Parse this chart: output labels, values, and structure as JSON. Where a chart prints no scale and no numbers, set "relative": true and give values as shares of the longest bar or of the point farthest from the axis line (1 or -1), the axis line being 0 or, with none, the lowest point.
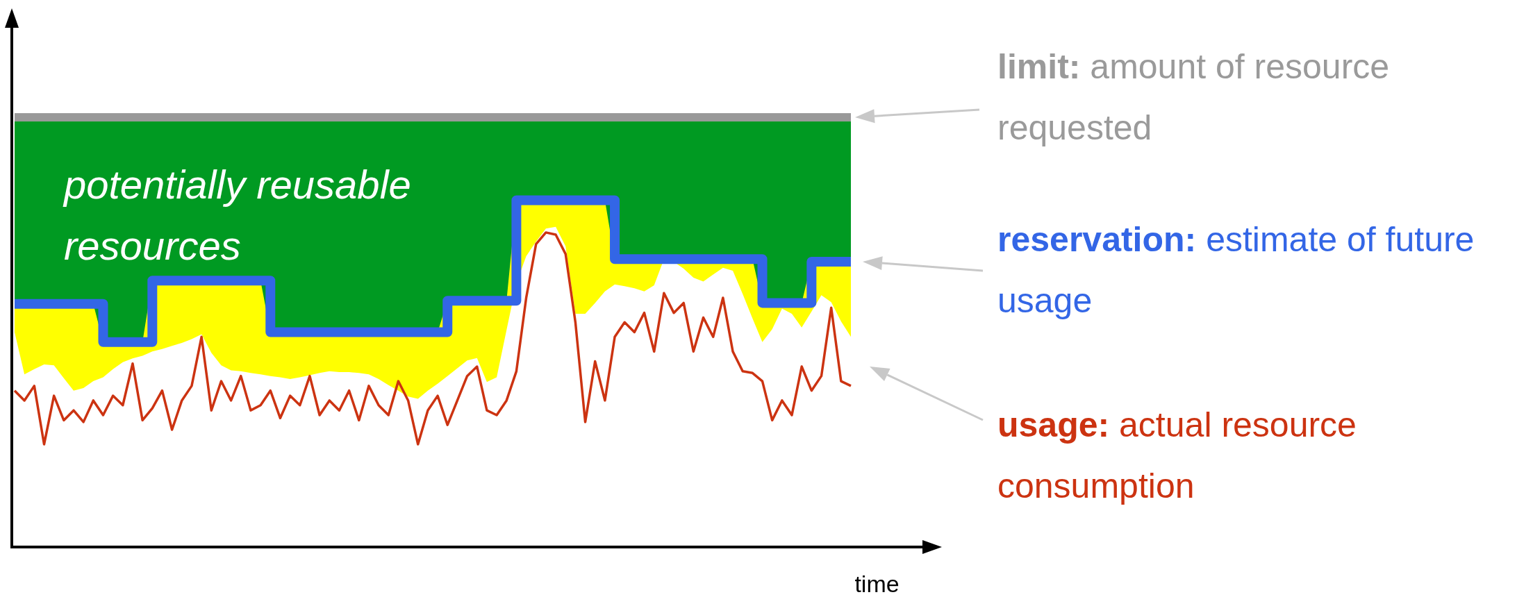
{
  "chart_data": {
    "type": "line",
    "relative": true,
    "xlabel": "time",
    "annotations": [
      "potentially reusable resources",
      "amount of resource requested",
      "estimate of future usage",
      "actual resource consumption"
    ],
    "categories": [
      null,
      null,
      null,
      null,
      null,
      null,
      null,
      null,
      null,
      null,
      null,
      null,
      null,
      null,
      null,
      null,
      null,
      null,
      null,
      null,
      null,
      null,
      null,
      null,
      null,
      null,
      null,
      null,
      null,
      null,
      null,
      null,
      null,
      null,
      null,
      null,
      null,
      null,
      null,
      null,
      null,
      null,
      null,
      null,
      null,
      null,
      null,
      null,
      null,
      null,
      null,
      null,
      null,
      null,
      null,
      null,
      null,
      null,
      null,
      null,
      null,
      null,
      null,
      null,
      null,
      null,
      null,
      null,
      null,
      null,
      null,
      null,
      null,
      null,
      null,
      null,
      null,
      null,
      null,
      null,
      null,
      null,
      null,
      null,
      null,
      null
    ],
    "series": [
      {
        "type": "area",
        "color": "#009a22",
        "values": [
          1,
          1,
          1,
          1,
          1,
          1,
          1,
          1,
          1,
          1,
          1,
          1,
          1,
          1,
          1,
          1,
          1,
          1,
          1,
          1,
          1,
          1,
          1,
          1,
          1,
          1,
          1,
          1,
          1,
          1,
          1,
          1,
          1,
          1,
          1,
          1,
          1,
          1,
          1,
          1,
          1,
          1,
          1,
          1,
          1,
          1,
          1,
          1,
          1,
          1,
          1,
          1,
          1,
          1,
          1,
          1,
          1,
          1,
          1,
          1,
          1,
          1,
          1,
          1,
          1,
          1,
          1,
          1,
          1,
          1,
          1,
          1,
          1,
          1,
          1,
          1,
          1,
          1,
          1,
          1,
          1,
          1,
          1,
          1,
          1,
          1
        ]
      },
      {
        "type": "area",
        "color": "#ffff00",
        "values": [
          0.566,
          0.566,
          0.566,
          0.566,
          0.566,
          0.566,
          0.566,
          0.566,
          0.566,
          0.477,
          0.477,
          0.477,
          0.477,
          0.477,
          0.62,
          0.62,
          0.62,
          0.62,
          0.62,
          0.62,
          0.62,
          0.62,
          0.62,
          0.62,
          0.62,
          0.62,
          0.5,
          0.5,
          0.5,
          0.5,
          0.5,
          0.5,
          0.5,
          0.5,
          0.5,
          0.5,
          0.5,
          0.5,
          0.5,
          0.5,
          0.5,
          0.5,
          0.5,
          0.5,
          0.573,
          0.573,
          0.573,
          0.573,
          0.573,
          0.573,
          0.573,
          0.807,
          0.807,
          0.807,
          0.807,
          0.807,
          0.807,
          0.807,
          0.807,
          0.807,
          0.807,
          0.67,
          0.67,
          0.67,
          0.67,
          0.67,
          0.67,
          0.67,
          0.67,
          0.67,
          0.67,
          0.67,
          0.67,
          0.67,
          0.67,
          0.67,
          0.568,
          0.568,
          0.568,
          0.568,
          0.568,
          0.664,
          0.664,
          0.664,
          0.664,
          0.664
        ]
      },
      {
        "type": "area",
        "color": "#ffffff",
        "values": [
          0.5,
          0.402,
          0.414,
          0.425,
          0.423,
          0.393,
          0.364,
          0.37,
          0.386,
          0.395,
          0.414,
          0.43,
          0.439,
          0.445,
          0.455,
          0.461,
          0.468,
          0.475,
          0.484,
          0.495,
          0.452,
          0.423,
          0.411,
          0.409,
          0.405,
          0.402,
          0.398,
          0.395,
          0.391,
          0.395,
          0.4,
          0.405,
          0.409,
          0.407,
          0.407,
          0.405,
          0.402,
          0.391,
          0.377,
          0.364,
          0.35,
          0.345,
          0.364,
          0.38,
          0.398,
          0.416,
          0.434,
          0.44,
          0.384,
          0.395,
          0.505,
          0.614,
          0.677,
          0.711,
          0.741,
          0.745,
          0.7,
          0.543,
          0.543,
          0.568,
          0.595,
          0.611,
          0.607,
          0.602,
          0.595,
          0.609,
          0.67,
          0.664,
          0.648,
          0.627,
          0.618,
          0.634,
          0.65,
          0.643,
          0.589,
          0.532,
          0.477,
          0.507,
          0.555,
          0.543,
          0.511,
          0.548,
          0.586,
          0.57,
          0.525,
          0.489
        ]
      },
      {
        "name": "limit:",
        "color": "#999999",
        "values": [
          1,
          1,
          1,
          1,
          1,
          1,
          1,
          1,
          1,
          1,
          1,
          1,
          1,
          1,
          1,
          1,
          1,
          1,
          1,
          1,
          1,
          1,
          1,
          1,
          1,
          1,
          1,
          1,
          1,
          1,
          1,
          1,
          1,
          1,
          1,
          1,
          1,
          1,
          1,
          1,
          1,
          1,
          1,
          1,
          1,
          1,
          1,
          1,
          1,
          1,
          1,
          1,
          1,
          1,
          1,
          1,
          1,
          1,
          1,
          1,
          1,
          1,
          1,
          1,
          1,
          1,
          1,
          1,
          1,
          1,
          1,
          1,
          1,
          1,
          1,
          1,
          1,
          1,
          1,
          1,
          1,
          1,
          1,
          1,
          1,
          1
        ]
      },
      {
        "name": "usage:",
        "color": "#cc3311",
        "values": [
          0.364,
          0.341,
          0.375,
          0.239,
          0.352,
          0.295,
          0.318,
          0.291,
          0.341,
          0.307,
          0.352,
          0.33,
          0.427,
          0.295,
          0.323,
          0.364,
          0.273,
          0.341,
          0.375,
          0.489,
          0.318,
          0.386,
          0.341,
          0.398,
          0.318,
          0.33,
          0.364,
          0.3,
          0.352,
          0.33,
          0.398,
          0.307,
          0.341,
          0.318,
          0.364,
          0.295,
          0.375,
          0.33,
          0.307,
          0.386,
          0.341,
          0.239,
          0.318,
          0.352,
          0.284,
          0.341,
          0.398,
          0.42,
          0.318,
          0.307,
          0.341,
          0.409,
          0.58,
          0.705,
          0.732,
          0.727,
          0.682,
          0.523,
          0.291,
          0.432,
          0.341,
          0.489,
          0.523,
          0.5,
          0.545,
          0.455,
          0.591,
          0.545,
          0.568,
          0.455,
          0.534,
          0.489,
          0.58,
          0.455,
          0.409,
          0.405,
          0.386,
          0.295,
          0.341,
          0.307,
          0.42,
          0.364,
          0.398,
          0.557,
          0.386,
          0.375
        ]
      },
      {
        "type": "step",
        "name": "reservation:",
        "color": "#3366e6",
        "values": [
          0.566,
          0.566,
          0.566,
          0.566,
          0.566,
          0.566,
          0.566,
          0.566,
          0.566,
          0.477,
          0.477,
          0.477,
          0.477,
          0.477,
          0.62,
          0.62,
          0.62,
          0.62,
          0.62,
          0.62,
          0.62,
          0.62,
          0.62,
          0.62,
          0.62,
          0.62,
          0.5,
          0.5,
          0.5,
          0.5,
          0.5,
          0.5,
          0.5,
          0.5,
          0.5,
          0.5,
          0.5,
          0.5,
          0.5,
          0.5,
          0.5,
          0.5,
          0.5,
          0.5,
          0.573,
          0.573,
          0.573,
          0.573,
          0.573,
          0.573,
          0.573,
          0.807,
          0.807,
          0.807,
          0.807,
          0.807,
          0.807,
          0.807,
          0.807,
          0.807,
          0.807,
          0.67,
          0.67,
          0.67,
          0.67,
          0.67,
          0.67,
          0.67,
          0.67,
          0.67,
          0.67,
          0.67,
          0.67,
          0.67,
          0.67,
          0.67,
          0.568,
          0.568,
          0.568,
          0.568,
          0.568,
          0.664,
          0.664,
          0.664,
          0.664,
          0.664
        ]
      }
    ]
  }
}
